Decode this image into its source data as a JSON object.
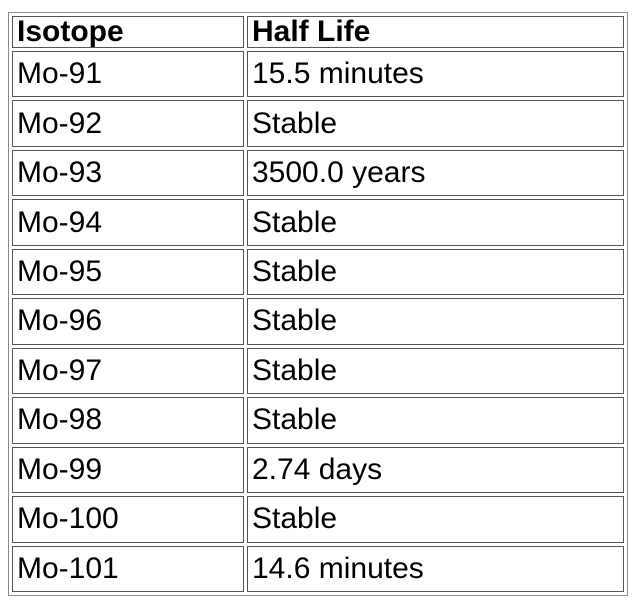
{
  "table": {
    "headers": [
      "Isotope",
      "Half Life"
    ],
    "rows": [
      [
        "Mo-91",
        "15.5 minutes"
      ],
      [
        "Mo-92",
        "Stable"
      ],
      [
        "Mo-93",
        "3500.0 years"
      ],
      [
        "Mo-94",
        "Stable"
      ],
      [
        "Mo-95",
        "Stable"
      ],
      [
        "Mo-96",
        "Stable"
      ],
      [
        "Mo-97",
        "Stable"
      ],
      [
        "Mo-98",
        "Stable"
      ],
      [
        "Mo-99",
        "2.74 days"
      ],
      [
        "Mo-100",
        "Stable"
      ],
      [
        "Mo-101",
        "14.6 minutes"
      ]
    ]
  }
}
